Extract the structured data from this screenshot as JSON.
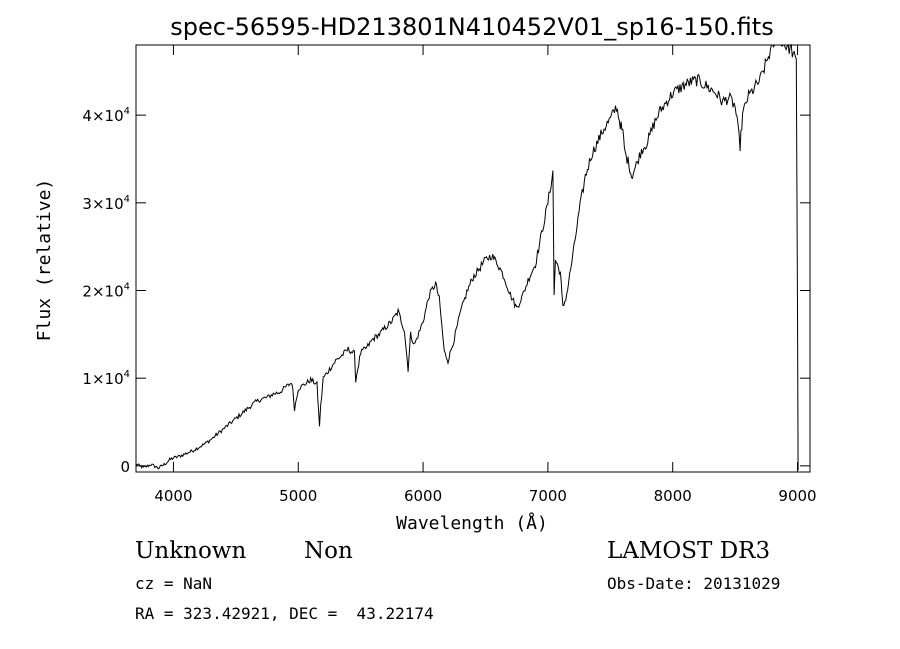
{
  "chart_data": {
    "type": "line",
    "title": "spec-56595-HD213801N410452V01_sp16-150.fits",
    "xlabel": "Wavelength (Å)",
    "ylabel": "Flux (relative)",
    "xlim": [
      3700,
      9100
    ],
    "ylim": [
      -700,
      48000
    ],
    "x_ticks": [
      4000,
      5000,
      6000,
      7000,
      8000,
      9000
    ],
    "y_ticks": [
      {
        "value": 0,
        "mantissa": "0",
        "exp": ""
      },
      {
        "value": 10000,
        "mantissa": "1×10",
        "exp": "4"
      },
      {
        "value": 20000,
        "mantissa": "2×10",
        "exp": "4"
      },
      {
        "value": 30000,
        "mantissa": "3×10",
        "exp": "4"
      },
      {
        "value": 40000,
        "mantissa": "4×10",
        "exp": "4"
      }
    ],
    "grid": false,
    "series": [
      {
        "x": [
          3700,
          3760,
          3820,
          3880,
          3940,
          3970,
          4000,
          4050,
          4100,
          4150,
          4200,
          4250,
          4300,
          4350,
          4400,
          4450,
          4500,
          4550,
          4600,
          4650,
          4700,
          4750,
          4800,
          4850,
          4900,
          4950,
          4970,
          5000,
          5050,
          5100,
          5150,
          5170,
          5180,
          5200,
          5250,
          5300,
          5350,
          5400,
          5450,
          5460,
          5500,
          5550,
          5600,
          5650,
          5700,
          5750,
          5800,
          5850,
          5880,
          5900,
          5930,
          5950,
          6000,
          6050,
          6100,
          6130,
          6150,
          6170,
          6200,
          6250,
          6300,
          6350,
          6400,
          6450,
          6500,
          6550,
          6600,
          6650,
          6700,
          6750,
          6800,
          6850,
          6900,
          6950,
          7000,
          7040,
          7050,
          7060,
          7100,
          7120,
          7150,
          7200,
          7250,
          7300,
          7350,
          7400,
          7450,
          7500,
          7550,
          7580,
          7600,
          7620,
          7650,
          7670,
          7700,
          7750,
          7800,
          7850,
          7900,
          7950,
          8000,
          8050,
          8100,
          8150,
          8200,
          8250,
          8300,
          8350,
          8400,
          8450,
          8500,
          8540,
          8560,
          8600,
          8650,
          8700,
          8750,
          8800,
          8850,
          8900,
          8950,
          8990,
          9000,
          9005
        ],
        "y": [
          200,
          -200,
          150,
          -250,
          300,
          700,
          900,
          1100,
          1400,
          1700,
          2100,
          2500,
          3000,
          3600,
          4200,
          4800,
          5400,
          6000,
          6600,
          7200,
          7600,
          7800,
          8200,
          8400,
          9000,
          9500,
          6500,
          8800,
          9300,
          9800,
          9300,
          4600,
          6800,
          10000,
          11000,
          12000,
          12600,
          13300,
          12800,
          9800,
          12900,
          13500,
          14500,
          15000,
          15800,
          16500,
          17600,
          15500,
          11000,
          15000,
          13800,
          14500,
          16500,
          19500,
          20800,
          19000,
          16000,
          13000,
          12000,
          14500,
          17500,
          19800,
          21500,
          22500,
          23500,
          24000,
          23000,
          21500,
          19500,
          18000,
          19500,
          21500,
          23000,
          26500,
          30000,
          33500,
          19500,
          23500,
          22000,
          18000,
          19500,
          24000,
          29000,
          33000,
          35500,
          37000,
          38500,
          39500,
          41000,
          39000,
          38000,
          35500,
          34500,
          33000,
          34000,
          36000,
          37000,
          39000,
          40500,
          41500,
          42500,
          43000,
          43500,
          43800,
          44000,
          43500,
          43000,
          42500,
          41500,
          42000,
          41000,
          36500,
          40000,
          42000,
          43000,
          44000,
          46000,
          48000,
          49000,
          48000,
          47500,
          46000,
          18000,
          -500
        ]
      }
    ]
  },
  "footer": {
    "object_name": "Unknown",
    "object_class": "Non",
    "survey": "LAMOST DR3",
    "cz": "cz = NaN",
    "obs_date": "Obs-Date: 20131029",
    "coords": "RA = 323.42921, DEC =  43.22174"
  }
}
